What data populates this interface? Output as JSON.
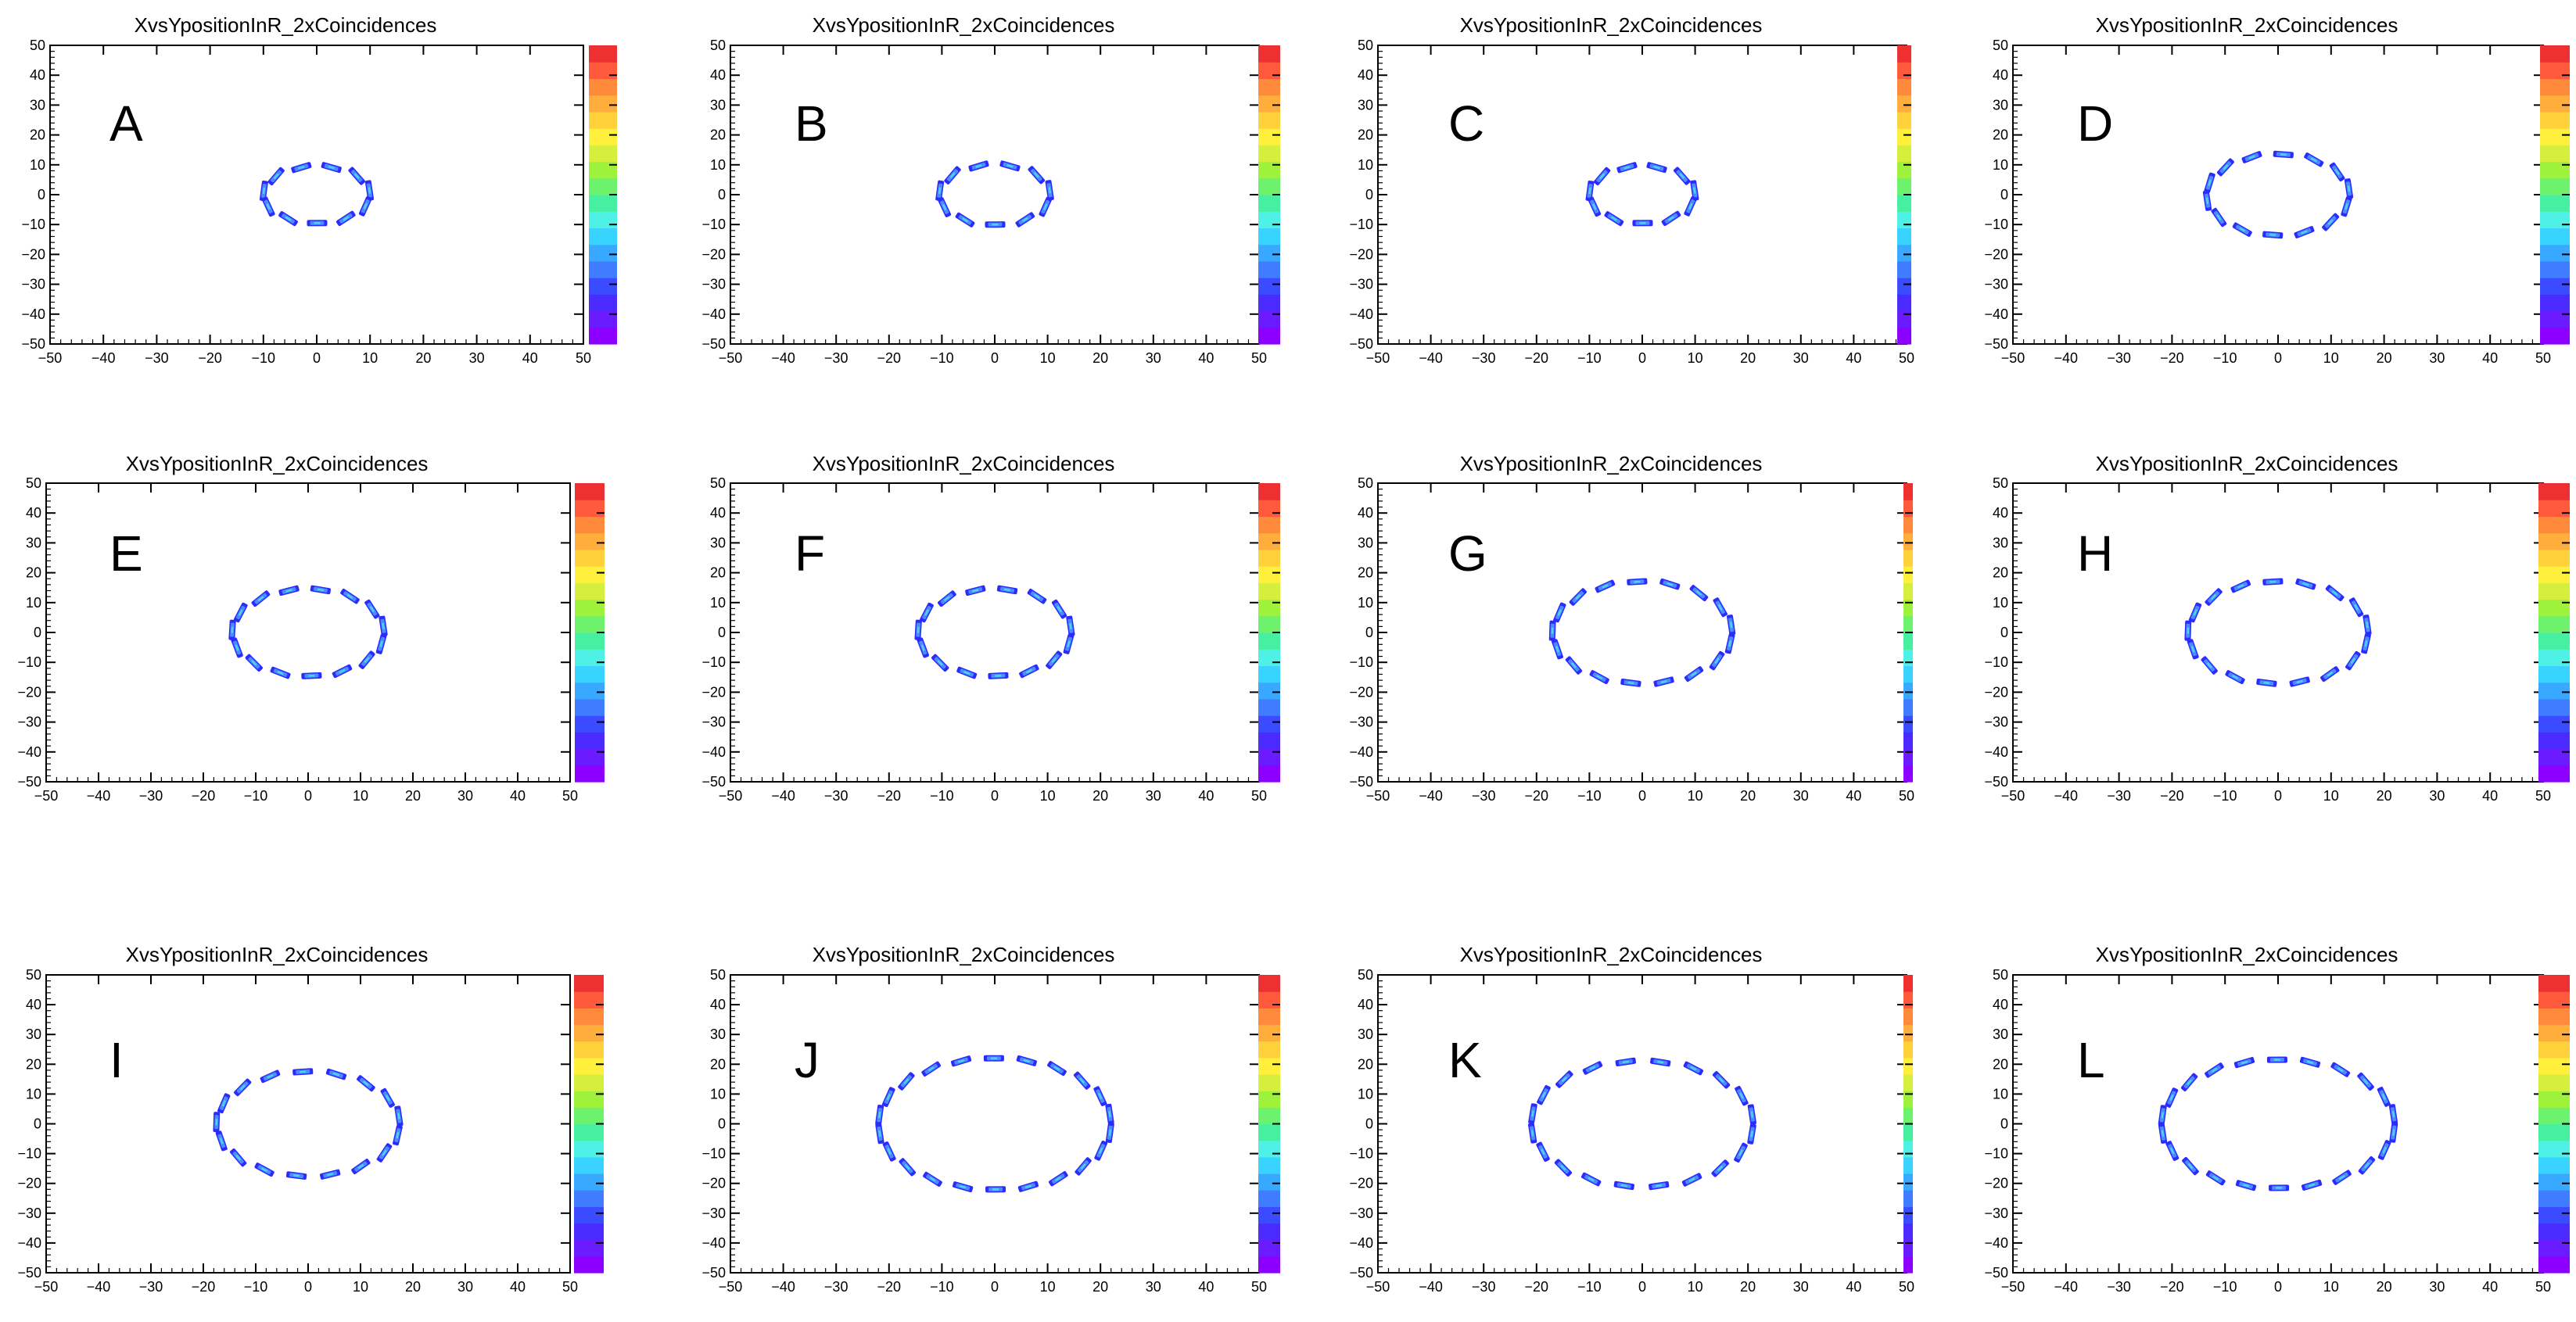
{
  "panel_title": "XvsYpositionInR_2xCoincidences",
  "colors": {
    "marker_outer": "#2b2bff",
    "marker_mid": "#4a8cff",
    "marker_core": "#4ad6e6",
    "palette": [
      "#8b00ff",
      "#6a1bff",
      "#4b2bff",
      "#3b4bff",
      "#3f7cff",
      "#39a8ff",
      "#39d3ff",
      "#4ff0e6",
      "#46f0a0",
      "#6cf26c",
      "#9ef23c",
      "#d6ef3c",
      "#fff03c",
      "#ffd23c",
      "#ffad3c",
      "#ff8a3c",
      "#ff5a3c",
      "#ef3030"
    ]
  },
  "chart_data": [
    {
      "type": "heatmap",
      "label": "A",
      "title": "XvsYpositionInR_2xCoincidences",
      "xlim": [
        -50,
        50
      ],
      "ylim": [
        -50,
        50
      ],
      "xticks": [
        -50,
        -40,
        -30,
        -20,
        -10,
        0,
        10,
        20,
        30,
        40,
        50
      ],
      "yticks": [
        -50,
        -40,
        -30,
        -20,
        -10,
        0,
        10,
        20,
        30,
        40,
        50
      ],
      "ring_rx": 10,
      "ring_ry": 9.5,
      "cluster_count": 11,
      "colorbar": true
    },
    {
      "type": "heatmap",
      "label": "B",
      "title": "XvsYpositionInR_2xCoincidences",
      "xlim": [
        -50,
        50
      ],
      "ylim": [
        -50,
        50
      ],
      "xticks": [
        -50,
        -40,
        -30,
        -20,
        -10,
        0,
        10,
        20,
        30,
        40,
        50
      ],
      "yticks": [
        -50,
        -40,
        -30,
        -20,
        -10,
        0,
        10,
        20,
        30,
        40,
        50
      ],
      "ring_rx": 10.5,
      "ring_ry": 10,
      "cluster_count": 11,
      "colorbar": true
    },
    {
      "type": "heatmap",
      "label": "C",
      "title": "XvsYpositionInR_2xCoincidences",
      "xlim": [
        -50,
        50
      ],
      "ylim": [
        -50,
        50
      ],
      "xticks": [
        -50,
        -40,
        -30,
        -20,
        -10,
        0,
        10,
        20,
        30,
        40,
        50
      ],
      "yticks": [
        -50,
        -40,
        -30,
        -20,
        -10,
        0,
        10,
        20,
        30,
        40,
        50
      ],
      "ring_rx": 10,
      "ring_ry": 9.5,
      "cluster_count": 11,
      "colorbar": true
    },
    {
      "type": "heatmap",
      "label": "D",
      "title": "XvsYpositionInR_2xCoincidences",
      "xlim": [
        -50,
        50
      ],
      "ylim": [
        -50,
        50
      ],
      "xticks": [
        -50,
        -40,
        -30,
        -20,
        -10,
        0,
        10,
        20,
        30,
        40,
        50
      ],
      "yticks": [
        -50,
        -40,
        -30,
        -20,
        -10,
        0,
        10,
        20,
        30,
        40,
        50
      ],
      "ring_rx": 13.5,
      "ring_ry": 13.5,
      "cluster_count": 14,
      "colorbar": true
    },
    {
      "type": "heatmap",
      "label": "E",
      "title": "XvsYpositionInR_2xCoincidences",
      "xlim": [
        -50,
        50
      ],
      "ylim": [
        -50,
        50
      ],
      "xticks": [
        -50,
        -40,
        -30,
        -20,
        -10,
        0,
        10,
        20,
        30,
        40,
        50
      ],
      "yticks": [
        -50,
        -40,
        -30,
        -20,
        -10,
        0,
        10,
        20,
        30,
        40,
        50
      ],
      "ring_rx": 14.5,
      "ring_ry": 14.5,
      "cluster_count": 15,
      "colorbar": true
    },
    {
      "type": "heatmap",
      "label": "F",
      "title": "XvsYpositionInR_2xCoincidences",
      "xlim": [
        -50,
        50
      ],
      "ylim": [
        -50,
        50
      ],
      "xticks": [
        -50,
        -40,
        -30,
        -20,
        -10,
        0,
        10,
        20,
        30,
        40,
        50
      ],
      "yticks": [
        -50,
        -40,
        -30,
        -20,
        -10,
        0,
        10,
        20,
        30,
        40,
        50
      ],
      "ring_rx": 14.5,
      "ring_ry": 14.5,
      "cluster_count": 15,
      "colorbar": true
    },
    {
      "type": "heatmap",
      "label": "G",
      "title": "XvsYpositionInR_2xCoincidences",
      "xlim": [
        -50,
        50
      ],
      "ylim": [
        -50,
        50
      ],
      "xticks": [
        -50,
        -40,
        -30,
        -20,
        -10,
        0,
        10,
        20,
        30,
        40,
        50
      ],
      "yticks": [
        -50,
        -40,
        -30,
        -20,
        -10,
        0,
        10,
        20,
        30,
        40,
        50
      ],
      "ring_rx": 17,
      "ring_ry": 17,
      "cluster_count": 17,
      "colorbar": true
    },
    {
      "type": "heatmap",
      "label": "H",
      "title": "XvsYpositionInR_2xCoincidences",
      "xlim": [
        -50,
        50
      ],
      "ylim": [
        -50,
        50
      ],
      "xticks": [
        -50,
        -40,
        -30,
        -20,
        -10,
        0,
        10,
        20,
        30,
        40,
        50
      ],
      "yticks": [
        -50,
        -40,
        -30,
        -20,
        -10,
        0,
        10,
        20,
        30,
        40,
        50
      ],
      "ring_rx": 17,
      "ring_ry": 17,
      "cluster_count": 17,
      "colorbar": true
    },
    {
      "type": "heatmap",
      "label": "I",
      "title": "XvsYpositionInR_2xCoincidences",
      "xlim": [
        -50,
        50
      ],
      "ylim": [
        -50,
        50
      ],
      "xticks": [
        -50,
        -40,
        -30,
        -20,
        -10,
        0,
        10,
        20,
        30,
        40,
        50
      ],
      "yticks": [
        -50,
        -40,
        -30,
        -20,
        -10,
        0,
        10,
        20,
        30,
        40,
        50
      ],
      "ring_rx": 17.5,
      "ring_ry": 17.5,
      "cluster_count": 17,
      "colorbar": true
    },
    {
      "type": "heatmap",
      "label": "J",
      "title": "XvsYpositionInR_2xCoincidences",
      "xlim": [
        -50,
        50
      ],
      "ylim": [
        -50,
        50
      ],
      "xticks": [
        -50,
        -40,
        -30,
        -20,
        -10,
        0,
        10,
        20,
        30,
        40,
        50
      ],
      "yticks": [
        -50,
        -40,
        -30,
        -20,
        -10,
        0,
        10,
        20,
        30,
        40,
        50
      ],
      "ring_rx": 22,
      "ring_ry": 22,
      "cluster_count": 22,
      "colorbar": true
    },
    {
      "type": "heatmap",
      "label": "K",
      "title": "XvsYpositionInR_2xCoincidences",
      "xlim": [
        -50,
        50
      ],
      "ylim": [
        -50,
        50
      ],
      "xticks": [
        -50,
        -40,
        -30,
        -20,
        -10,
        0,
        10,
        20,
        30,
        40,
        50
      ],
      "yticks": [
        -50,
        -40,
        -30,
        -20,
        -10,
        0,
        10,
        20,
        30,
        40,
        50
      ],
      "ring_rx": 21,
      "ring_ry": 21,
      "cluster_count": 20,
      "colorbar": true
    },
    {
      "type": "heatmap",
      "label": "L",
      "title": "XvsYpositionInR_2xCoincidences",
      "xlim": [
        -50,
        50
      ],
      "ylim": [
        -50,
        50
      ],
      "xticks": [
        -50,
        -40,
        -30,
        -20,
        -10,
        0,
        10,
        20,
        30,
        40,
        50
      ],
      "yticks": [
        -50,
        -40,
        -30,
        -20,
        -10,
        0,
        10,
        20,
        30,
        40,
        50
      ],
      "ring_rx": 22,
      "ring_ry": 21.5,
      "cluster_count": 22,
      "colorbar": true
    }
  ]
}
